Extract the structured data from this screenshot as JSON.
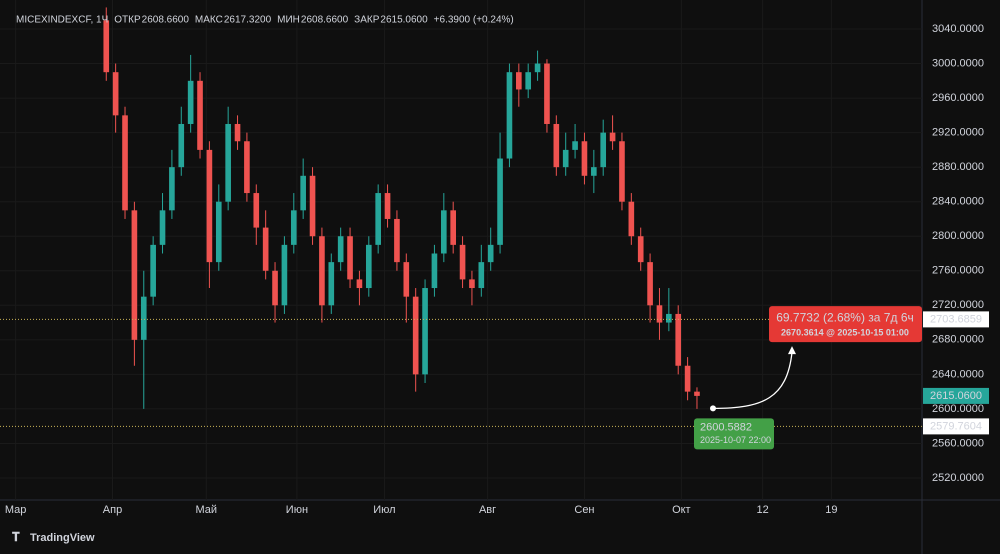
{
  "chart_data": {
    "type": "candlestick",
    "header": {
      "symbol": "MICEXINDEXCF, 1Ч",
      "open_label": "ОТКР",
      "open": "2608.6600",
      "high_label": "МАКС",
      "high": "2617.3200",
      "low_label": "МИН",
      "low": "2608.6600",
      "close_label": "ЗАКР",
      "close": "2615.0600",
      "change": "+6.3900 (+0.24%)"
    },
    "up_color": "#26a69a",
    "down_color": "#ef5350",
    "x": [
      29,
      32,
      35,
      38,
      41,
      44,
      47,
      50,
      53,
      56,
      59,
      62,
      65,
      68,
      71,
      74,
      77,
      80,
      83,
      86,
      89,
      92,
      95,
      98,
      101,
      104,
      107,
      110,
      113,
      116,
      119,
      122,
      125,
      128,
      131,
      134,
      137,
      140,
      143,
      146,
      149,
      152,
      155,
      158,
      161,
      164,
      167,
      170,
      173,
      176,
      179,
      182,
      185,
      188,
      191,
      194,
      197,
      200,
      203,
      206,
      209,
      212,
      215,
      218
    ],
    "open": [
      3050,
      2990,
      2940,
      2830,
      2680,
      2730,
      2790,
      2830,
      2880,
      2930,
      2980,
      2900,
      2770,
      2840,
      2930,
      2910,
      2850,
      2810,
      2760,
      2720,
      2790,
      2830,
      2870,
      2800,
      2720,
      2770,
      2800,
      2750,
      2740,
      2790,
      2850,
      2820,
      2770,
      2730,
      2640,
      2740,
      2780,
      2830,
      2790,
      2750,
      2740,
      2770,
      2790,
      2890,
      2990,
      2970,
      2990,
      3000,
      2930,
      2880,
      2900,
      2910,
      2870,
      2880,
      2920,
      2910,
      2840,
      2800,
      2770,
      2720,
      2700,
      2710,
      2650,
      2620
    ],
    "high": [
      3065,
      3000,
      2950,
      2840,
      2760,
      2800,
      2850,
      2900,
      2950,
      3010,
      2990,
      2910,
      2860,
      2950,
      2940,
      2920,
      2860,
      2830,
      2770,
      2800,
      2850,
      2890,
      2880,
      2810,
      2780,
      2810,
      2810,
      2760,
      2800,
      2860,
      2860,
      2830,
      2780,
      2740,
      2750,
      2790,
      2850,
      2840,
      2800,
      2760,
      2790,
      2810,
      2920,
      3000,
      3000,
      3000,
      3015,
      3005,
      2940,
      2920,
      2930,
      2920,
      2900,
      2935,
      2940,
      2920,
      2850,
      2810,
      2780,
      2740,
      2740,
      2720,
      2660,
      2625
    ],
    "low": [
      2980,
      2920,
      2820,
      2650,
      2600,
      2720,
      2780,
      2820,
      2870,
      2920,
      2890,
      2740,
      2760,
      2830,
      2900,
      2840,
      2790,
      2750,
      2700,
      2710,
      2780,
      2820,
      2790,
      2700,
      2710,
      2760,
      2740,
      2720,
      2730,
      2780,
      2810,
      2760,
      2700,
      2620,
      2630,
      2730,
      2770,
      2780,
      2740,
      2720,
      2730,
      2760,
      2780,
      2880,
      2950,
      2960,
      2980,
      2920,
      2870,
      2870,
      2890,
      2860,
      2850,
      2870,
      2900,
      2830,
      2790,
      2760,
      2700,
      2680,
      2690,
      2640,
      2610,
      2600
    ],
    "close": [
      2990,
      2940,
      2830,
      2680,
      2730,
      2790,
      2830,
      2880,
      2930,
      2980,
      2900,
      2770,
      2840,
      2930,
      2910,
      2850,
      2810,
      2760,
      2720,
      2790,
      2830,
      2870,
      2800,
      2720,
      2770,
      2800,
      2750,
      2740,
      2790,
      2850,
      2820,
      2770,
      2730,
      2640,
      2740,
      2780,
      2830,
      2790,
      2750,
      2740,
      2770,
      2790,
      2890,
      2990,
      2970,
      2990,
      3000,
      2930,
      2880,
      2900,
      2910,
      2870,
      2880,
      2920,
      2910,
      2840,
      2800,
      2770,
      2720,
      2700,
      2710,
      2650,
      2620,
      2615.06
    ],
    "xlim": [
      -5,
      290
    ],
    "xticks": [
      {
        "value": 0,
        "label": "Мар"
      },
      {
        "value": 31,
        "label": "Апр"
      },
      {
        "value": 61,
        "label": "Май"
      },
      {
        "value": 90,
        "label": "Июн"
      },
      {
        "value": 118,
        "label": "Июл"
      },
      {
        "value": 151,
        "label": "Авг"
      },
      {
        "value": 182,
        "label": "Сен"
      },
      {
        "value": 213,
        "label": "Окт"
      },
      {
        "value": 239,
        "label": "12"
      },
      {
        "value": 261,
        "label": "19"
      }
    ],
    "ylim": [
      2494.5,
      3073.6
    ],
    "yticks": [
      {
        "value": 2520,
        "label": "2520.0000"
      },
      {
        "value": 2560,
        "label": "2560.0000"
      },
      {
        "value": 2600,
        "label": "2600.0000"
      },
      {
        "value": 2640,
        "label": "2640.0000"
      },
      {
        "value": 2680,
        "label": "2680.0000"
      },
      {
        "value": 2720,
        "label": "2720.0000"
      },
      {
        "value": 2760,
        "label": "2760.0000"
      },
      {
        "value": 2800,
        "label": "2800.0000"
      },
      {
        "value": 2840,
        "label": "2840.0000"
      },
      {
        "value": 2880,
        "label": "2880.0000"
      },
      {
        "value": 2920,
        "label": "2920.0000"
      },
      {
        "value": 2960,
        "label": "2960.0000"
      },
      {
        "value": 3000,
        "label": "3000.0000"
      },
      {
        "value": 3040,
        "label": "3040.0000"
      }
    ],
    "price_lines": [
      {
        "value": 2703.6859,
        "label": "2703.6859",
        "color": "#ffffff"
      },
      {
        "value": 2579.7604,
        "label": "2579.7604",
        "color": "#ffffff"
      }
    ],
    "last_price": {
      "value": 2615.06,
      "label": "2615.0600",
      "color": "#26a69a"
    },
    "projection": {
      "from": 2600.5882,
      "from_label": "2600.5882",
      "from_time": "2025-10-07 22:00",
      "to": 2670.3614,
      "change": "69.7732 (2.68%) за 7д 6ч",
      "to_label": "2670.3614 @ 2025-10-15  01:00"
    },
    "brand": "TradingView"
  }
}
